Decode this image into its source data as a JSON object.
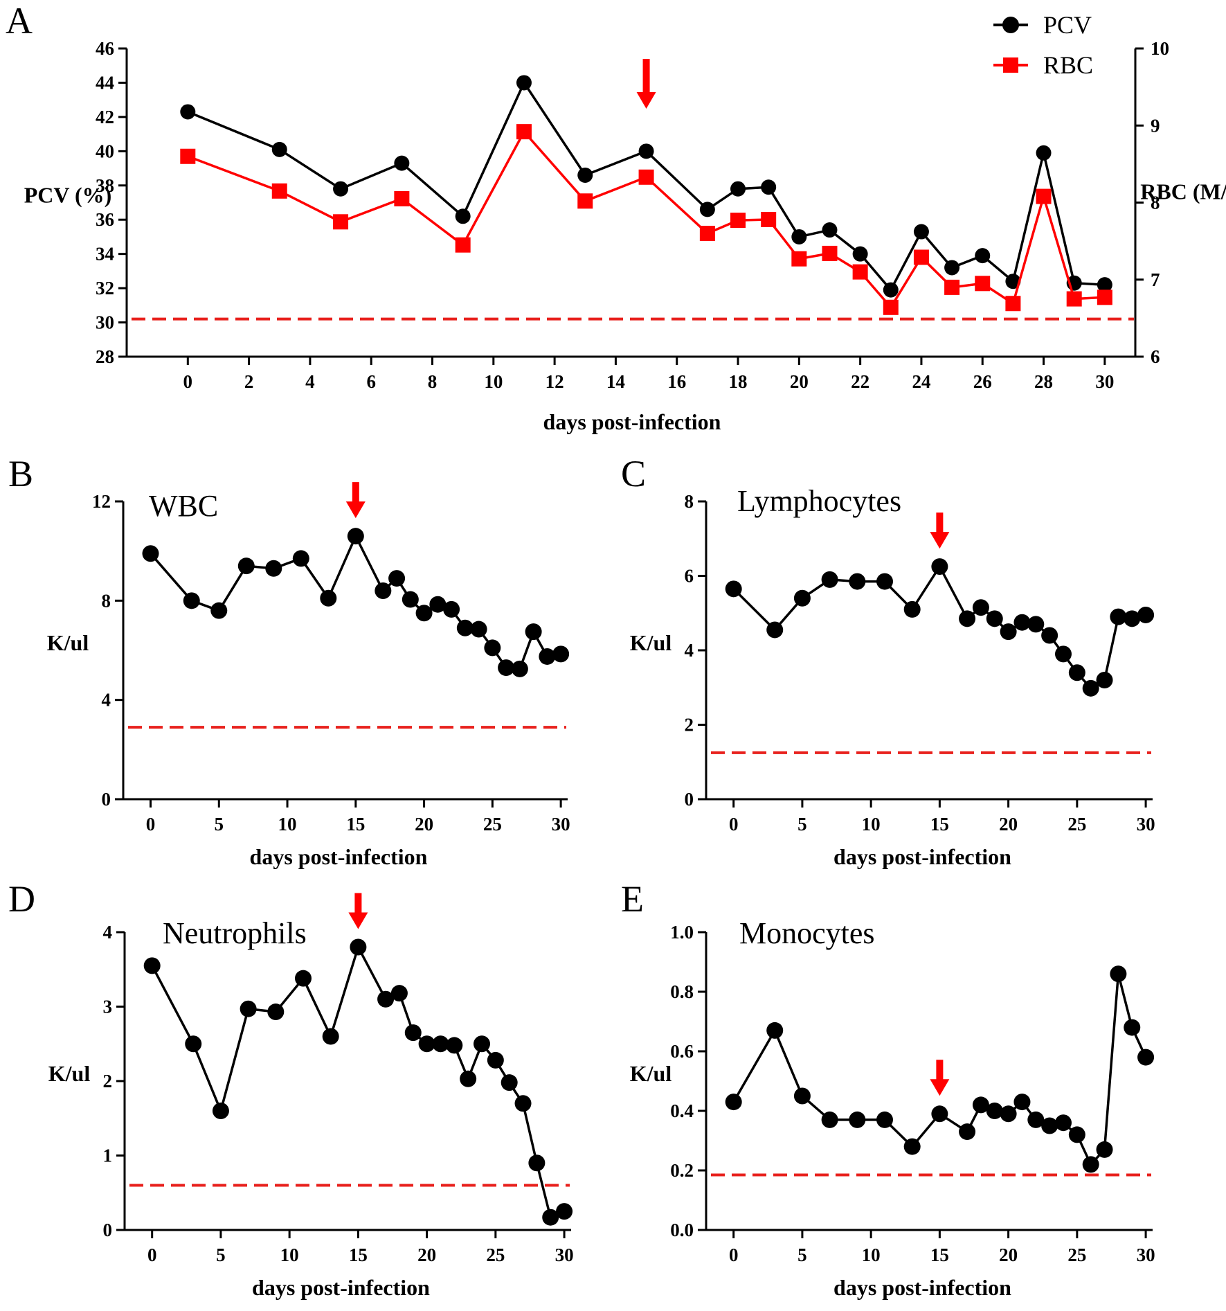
{
  "figure": {
    "colors": {
      "ink": "#000000",
      "red": "#ff0000",
      "dashed": "#e8201c"
    }
  },
  "chart_data": [
    {
      "id": "A",
      "panel_label": "A",
      "type": "line",
      "xlabel": "days post-infection",
      "ylabel": "PCV (%)",
      "y2label": "RBC (M/μL)",
      "xlim": [
        -2,
        31
      ],
      "xticks": [
        0,
        2,
        4,
        6,
        8,
        10,
        12,
        14,
        16,
        18,
        20,
        22,
        24,
        26,
        28,
        30
      ],
      "xtick_labels": [
        "0",
        "2",
        "4",
        "6",
        "8",
        "10",
        "12",
        "14",
        "16",
        "18",
        "20",
        "22",
        "24",
        "26",
        "28",
        "30"
      ],
      "ylim": [
        28,
        46
      ],
      "yticks": [
        28,
        30,
        32,
        34,
        36,
        38,
        40,
        42,
        44,
        46
      ],
      "ytick_labels": [
        "28",
        "30",
        "32",
        "34",
        "36",
        "38",
        "40",
        "42",
        "44",
        "46"
      ],
      "y2lim": [
        6,
        10
      ],
      "y2ticks": [
        6,
        7,
        8,
        9,
        10
      ],
      "y2tick_labels": [
        "6",
        "7",
        "8",
        "9",
        "10"
      ],
      "reference_line": {
        "axis": "y",
        "value": 30.2,
        "style": "dashed",
        "color": "#e8201c"
      },
      "arrow_at_x": 15,
      "legend": {
        "position": "top-right",
        "entries": [
          "PCV",
          "RBC"
        ]
      },
      "series": [
        {
          "name": "PCV",
          "axis": "left",
          "marker": "circle",
          "color": "#000000",
          "x": [
            0,
            3,
            5,
            7,
            9,
            11,
            13,
            15,
            17,
            18,
            19,
            20,
            21,
            22,
            23,
            24,
            25,
            26,
            27,
            28,
            29,
            30
          ],
          "values": [
            42.3,
            40.1,
            37.8,
            39.3,
            36.2,
            44.0,
            38.6,
            40.0,
            36.6,
            37.8,
            37.9,
            35.0,
            35.4,
            34.0,
            31.9,
            35.3,
            33.2,
            33.9,
            32.4,
            39.9,
            32.3,
            32.2
          ]
        },
        {
          "name": "RBC",
          "axis": "right",
          "marker": "square",
          "color": "#ff0000",
          "x": [
            0,
            3,
            5,
            7,
            9,
            11,
            13,
            15,
            17,
            18,
            19,
            20,
            21,
            22,
            23,
            24,
            25,
            26,
            27,
            28,
            29,
            30
          ],
          "values": [
            8.6,
            8.15,
            7.75,
            8.05,
            7.45,
            8.92,
            8.02,
            8.33,
            7.6,
            7.77,
            7.78,
            7.27,
            7.34,
            7.1,
            6.64,
            7.29,
            6.9,
            6.95,
            6.69,
            8.08,
            6.75,
            6.77
          ]
        }
      ]
    },
    {
      "id": "B",
      "panel_label": "B",
      "title": "WBC",
      "type": "line",
      "xlabel": "days post-infection",
      "ylabel": "K/ul",
      "xlim": [
        -2,
        30.5
      ],
      "xticks": [
        0,
        5,
        10,
        15,
        20,
        25,
        30
      ],
      "xtick_labels": [
        "0",
        "5",
        "10",
        "15",
        "20",
        "25",
        "30"
      ],
      "ylim": [
        0,
        12
      ],
      "yticks": [
        0,
        4,
        8,
        12
      ],
      "ytick_labels": [
        "0",
        "4",
        "8",
        "12"
      ],
      "reference_line": {
        "axis": "y",
        "value": 2.9,
        "style": "dashed",
        "color": "#e8201c"
      },
      "arrow_at_x": 15,
      "series": [
        {
          "name": "WBC",
          "marker": "circle",
          "color": "#000000",
          "x": [
            0,
            3,
            5,
            7,
            9,
            11,
            13,
            15,
            17,
            18,
            19,
            20,
            21,
            22,
            23,
            24,
            25,
            26,
            27,
            28,
            29,
            30
          ],
          "values": [
            9.9,
            8.0,
            7.6,
            9.4,
            9.3,
            9.7,
            8.1,
            10.6,
            8.4,
            8.9,
            8.05,
            7.5,
            7.85,
            7.65,
            6.9,
            6.85,
            6.1,
            5.3,
            5.25,
            6.75,
            5.75,
            5.85
          ]
        }
      ]
    },
    {
      "id": "C",
      "panel_label": "C",
      "title": "Lymphocytes",
      "type": "line",
      "xlabel": "days post-infection",
      "ylabel": "K/ul",
      "xlim": [
        -2,
        30.5
      ],
      "xticks": [
        0,
        5,
        10,
        15,
        20,
        25,
        30
      ],
      "xtick_labels": [
        "0",
        "5",
        "10",
        "15",
        "20",
        "25",
        "30"
      ],
      "ylim": [
        0,
        8
      ],
      "yticks": [
        0,
        2,
        4,
        6,
        8
      ],
      "ytick_labels": [
        "0",
        "2",
        "4",
        "6",
        "8"
      ],
      "reference_line": {
        "axis": "y",
        "value": 1.25,
        "style": "dashed",
        "color": "#e8201c"
      },
      "arrow_at_x": 15,
      "series": [
        {
          "name": "Lymphocytes",
          "marker": "circle",
          "color": "#000000",
          "x": [
            0,
            3,
            5,
            7,
            9,
            11,
            13,
            15,
            17,
            18,
            19,
            20,
            21,
            22,
            23,
            24,
            25,
            26,
            27,
            28,
            29,
            30
          ],
          "values": [
            5.65,
            4.55,
            5.4,
            5.9,
            5.85,
            5.85,
            5.1,
            6.25,
            4.85,
            5.15,
            4.85,
            4.5,
            4.75,
            4.7,
            4.4,
            3.9,
            3.4,
            2.98,
            3.2,
            4.9,
            4.85,
            4.95
          ]
        }
      ]
    },
    {
      "id": "D",
      "panel_label": "D",
      "title": "Neutrophils",
      "type": "line",
      "xlabel": "days post-infection",
      "ylabel": "K/ul",
      "xlim": [
        -2,
        30.5
      ],
      "xticks": [
        0,
        5,
        10,
        15,
        20,
        25,
        30
      ],
      "xtick_labels": [
        "0",
        "5",
        "10",
        "15",
        "20",
        "25",
        "30"
      ],
      "ylim": [
        0,
        4
      ],
      "yticks": [
        0,
        1,
        2,
        3,
        4
      ],
      "ytick_labels": [
        "0",
        "1",
        "2",
        "3",
        "4"
      ],
      "reference_line": {
        "axis": "y",
        "value": 0.6,
        "style": "dashed",
        "color": "#e8201c"
      },
      "arrow_at_x": 15,
      "series": [
        {
          "name": "Neutrophils",
          "marker": "circle",
          "color": "#000000",
          "x": [
            0,
            3,
            5,
            7,
            9,
            11,
            13,
            15,
            17,
            18,
            19,
            20,
            21,
            22,
            23,
            24,
            25,
            26,
            27,
            28,
            29,
            30
          ],
          "values": [
            3.55,
            2.5,
            1.6,
            2.97,
            2.93,
            3.38,
            2.6,
            3.8,
            3.1,
            3.18,
            2.65,
            2.5,
            2.5,
            2.48,
            2.03,
            2.5,
            2.28,
            1.98,
            1.7,
            0.9,
            0.17,
            0.25
          ]
        }
      ]
    },
    {
      "id": "E",
      "panel_label": "E",
      "title": "Monocytes",
      "type": "line",
      "xlabel": "days post-infection",
      "ylabel": "K/ul",
      "xlim": [
        -2,
        30.5
      ],
      "xticks": [
        0,
        5,
        10,
        15,
        20,
        25,
        30
      ],
      "xtick_labels": [
        "0",
        "5",
        "10",
        "15",
        "20",
        "25",
        "30"
      ],
      "ylim": [
        0,
        1
      ],
      "yticks": [
        0,
        0.2,
        0.4,
        0.6,
        0.8,
        1.0
      ],
      "ytick_labels": [
        "0.0",
        "0.2",
        "0.4",
        "0.6",
        "0.8",
        "1.0"
      ],
      "reference_line": {
        "axis": "y",
        "value": 0.185,
        "style": "dashed",
        "color": "#e8201c"
      },
      "arrow_at_x": 15,
      "series": [
        {
          "name": "Monocytes",
          "marker": "circle",
          "color": "#000000",
          "x": [
            0,
            3,
            5,
            7,
            9,
            11,
            13,
            15,
            17,
            18,
            19,
            20,
            21,
            22,
            23,
            24,
            25,
            26,
            27,
            28,
            29,
            30
          ],
          "values": [
            0.43,
            0.67,
            0.45,
            0.37,
            0.37,
            0.37,
            0.28,
            0.39,
            0.33,
            0.42,
            0.4,
            0.39,
            0.43,
            0.37,
            0.35,
            0.36,
            0.32,
            0.22,
            0.27,
            0.86,
            0.68,
            0.58
          ]
        }
      ]
    }
  ]
}
